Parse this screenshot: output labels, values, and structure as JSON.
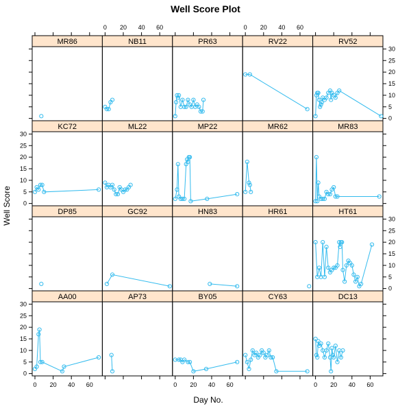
{
  "title": "Well Score Plot",
  "chart_data": {
    "type": "line",
    "title": "Well Score Plot",
    "xlabel": "Day No.",
    "ylabel": "Well Score",
    "xlim": [
      -3,
      74
    ],
    "ylim": [
      -1,
      31
    ],
    "x_ticks": [
      0,
      20,
      40,
      60
    ],
    "y_ticks": [
      0,
      5,
      10,
      15,
      20,
      25,
      30
    ],
    "layout": {
      "columns": 5,
      "rows": 4
    },
    "colors": {
      "series": "#33BBEE",
      "strip": "#FFE5CC"
    },
    "panels": [
      {
        "name": "MR86",
        "x": [
          7
        ],
        "y": [
          1
        ]
      },
      {
        "name": "NB11",
        "x": [
          0,
          2,
          4,
          6,
          8
        ],
        "y": [
          5,
          4,
          4,
          7,
          8
        ]
      },
      {
        "name": "PR63",
        "x": [
          0,
          1,
          2,
          3,
          4,
          6,
          8,
          10,
          12,
          14,
          16,
          18,
          20,
          22,
          24,
          26,
          28,
          30,
          31
        ],
        "y": [
          1,
          7,
          10,
          9,
          10,
          5,
          8,
          5,
          5,
          8,
          6,
          5,
          8,
          5,
          6,
          5,
          3,
          3,
          8
        ]
      },
      {
        "name": "RV22",
        "x": [
          0,
          5,
          68
        ],
        "y": [
          19,
          19,
          4
        ]
      },
      {
        "name": "RV52",
        "x": [
          0,
          1,
          2,
          3,
          4,
          5,
          6,
          7,
          8,
          10,
          12,
          14,
          16,
          17,
          18,
          20,
          22,
          24,
          26,
          72
        ],
        "y": [
          1,
          10,
          11,
          11,
          8,
          5,
          6,
          7,
          9,
          8,
          9,
          11,
          12,
          8,
          11,
          10,
          9,
          11,
          12,
          1
        ]
      },
      {
        "name": "KC72",
        "x": [
          0,
          2,
          4,
          6,
          8,
          10,
          70
        ],
        "y": [
          5,
          7,
          6,
          8,
          8,
          5,
          6
        ]
      },
      {
        "name": "ML22",
        "x": [
          0,
          2,
          4,
          6,
          8,
          10,
          12,
          14,
          16,
          18,
          20,
          22,
          24,
          26,
          28
        ],
        "y": [
          9,
          7,
          8,
          7,
          8,
          6,
          4,
          4,
          7,
          6,
          5,
          6,
          6,
          7,
          8
        ]
      },
      {
        "name": "MP22",
        "x": [
          0,
          2,
          3,
          4,
          6,
          8,
          10,
          12,
          13,
          14,
          15,
          16,
          17,
          35,
          68
        ],
        "y": [
          2,
          6,
          17,
          3,
          2,
          2,
          2,
          17,
          19,
          18,
          20,
          20,
          1,
          2,
          4
        ]
      },
      {
        "name": "MR62",
        "x": [
          0,
          2,
          4,
          5,
          6
        ],
        "y": [
          5,
          18,
          9,
          8,
          5
        ]
      },
      {
        "name": "MR83",
        "x": [
          0,
          1,
          2,
          3,
          4,
          6,
          8,
          10,
          12,
          14,
          16,
          18,
          20,
          22,
          24,
          70
        ],
        "y": [
          1,
          20,
          1,
          9,
          3,
          2,
          2,
          2,
          5,
          4,
          4,
          6,
          7,
          3,
          3,
          3
        ]
      },
      {
        "name": "DP85",
        "x": [
          7
        ],
        "y": [
          2
        ]
      },
      {
        "name": "GC92",
        "x": [
          2,
          8,
          71
        ],
        "y": [
          2,
          6,
          1
        ]
      },
      {
        "name": "HN83",
        "x": [
          38,
          68
        ],
        "y": [
          2,
          1
        ]
      },
      {
        "name": "HR61",
        "x": [
          70
        ],
        "y": [
          1
        ]
      },
      {
        "name": "HT61",
        "x": [
          0,
          2,
          4,
          6,
          8,
          10,
          12,
          14,
          16,
          18,
          20,
          22,
          24,
          26,
          27,
          28,
          29,
          30,
          32,
          34,
          36,
          38,
          40,
          42,
          44,
          46,
          48,
          50,
          62
        ],
        "y": [
          20,
          5,
          9,
          5,
          20,
          5,
          18,
          9,
          7,
          8,
          9,
          9,
          10,
          20,
          18,
          20,
          20,
          8,
          3,
          10,
          12,
          11,
          10,
          6,
          3,
          5,
          1,
          2,
          19
        ]
      },
      {
        "name": "AA00",
        "x": [
          0,
          2,
          4,
          5,
          6,
          8,
          30,
          32,
          70
        ],
        "y": [
          2,
          3,
          17,
          19,
          5,
          5,
          1,
          3,
          7
        ]
      },
      {
        "name": "AP73",
        "x": [
          7,
          8
        ],
        "y": [
          8,
          1
        ]
      },
      {
        "name": "BY05",
        "x": [
          0,
          4,
          6,
          8,
          10,
          14,
          16,
          20,
          34,
          68
        ],
        "y": [
          6,
          6,
          6,
          5,
          6,
          5,
          5,
          1,
          2,
          5
        ]
      },
      {
        "name": "CY63",
        "x": [
          0,
          2,
          4,
          6,
          8,
          10,
          12,
          14,
          16,
          18,
          20,
          22,
          24,
          26,
          28,
          30,
          34,
          68
        ],
        "y": [
          8,
          5,
          2,
          6,
          10,
          8,
          9,
          7,
          8,
          10,
          9,
          7,
          8,
          10,
          7,
          7,
          1,
          1
        ]
      },
      {
        "name": "DC13",
        "x": [
          0,
          1,
          2,
          3,
          4,
          6,
          8,
          10,
          12,
          14,
          16,
          17,
          18,
          19,
          20,
          22,
          24,
          26,
          28,
          30
        ],
        "y": [
          15,
          8,
          7,
          14,
          12,
          13,
          10,
          7,
          10,
          13,
          7,
          1,
          11,
          8,
          7,
          12,
          5,
          10,
          7,
          10
        ]
      }
    ]
  }
}
